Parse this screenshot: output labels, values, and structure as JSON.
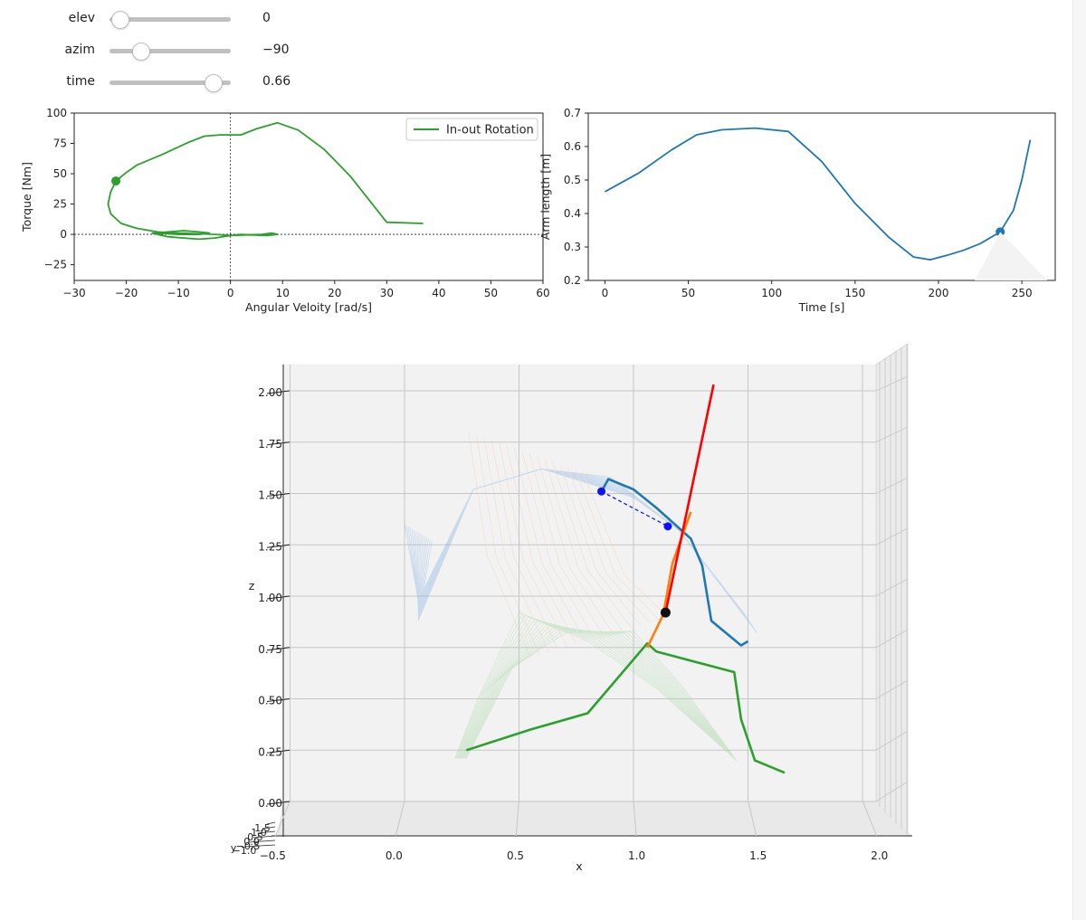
{
  "controls": {
    "sliders": [
      {
        "label": "elev",
        "value_text": "0",
        "fraction": 0.08
      },
      {
        "label": "azim",
        "value_text": "−90",
        "fraction": 0.25
      },
      {
        "label": "time",
        "value_text": "0.66",
        "fraction": 0.85
      }
    ]
  },
  "chart_data": [
    {
      "type": "line",
      "xlabel": "Angular Veloity [rad/s]",
      "ylabel": "Torque [Nm]",
      "xlim": [
        -30,
        60
      ],
      "ylim": [
        -38,
        100
      ],
      "xticks": [
        -30,
        -20,
        -10,
        0,
        10,
        20,
        30,
        40,
        50,
        60
      ],
      "yticks": [
        -25,
        0,
        25,
        50,
        75,
        100
      ],
      "xtick_labels": [
        "−30",
        "−20",
        "−10",
        "0",
        "10",
        "20",
        "30",
        "40",
        "50",
        "60"
      ],
      "ytick_labels": [
        "−25",
        "0",
        "25",
        "50",
        "75",
        "100"
      ],
      "reference_lines": {
        "x": 0,
        "y": 0,
        "style": "dotted"
      },
      "legend": {
        "position": "top-right",
        "entries": [
          "In-out Rotation"
        ]
      },
      "series": [
        {
          "name": "In-out Rotation",
          "color": "#2ca02c",
          "x": [
            -22,
            -20,
            -18,
            -13,
            -8,
            -5,
            -2,
            2,
            5,
            9,
            13,
            18,
            23,
            30,
            37
          ],
          "y": [
            44,
            51,
            57,
            66,
            76,
            81,
            82,
            82,
            87,
            92,
            86,
            70,
            48,
            10,
            9
          ],
          "loop": {
            "x": [
              -22,
              -23,
              -23.5,
              -23,
              -21,
              -18,
              -14,
              -10,
              -6,
              -3,
              0,
              3,
              6,
              8,
              9,
              7,
              4,
              2,
              0,
              -3,
              -6,
              -9,
              -12,
              -15,
              -12,
              -9,
              -6,
              -4,
              -6,
              -10,
              -14
            ],
            "y": [
              44,
              35,
              25,
              17,
              9,
              5,
              2,
              1,
              0.5,
              0,
              -1,
              -0.5,
              0,
              1,
              0,
              -1,
              -0.5,
              0,
              -1,
              -3,
              -4,
              -3,
              -2,
              1,
              2,
              3,
              2,
              1,
              0,
              0,
              1
            ]
          },
          "marker": {
            "x": -22,
            "y": 44
          }
        }
      ]
    },
    {
      "type": "line",
      "xlabel": "Time [s]",
      "ylabel": "Arm length [m]",
      "xlim": [
        -10,
        270
      ],
      "ylim": [
        0.2,
        0.7
      ],
      "xticks": [
        0,
        50,
        100,
        150,
        200,
        250
      ],
      "yticks": [
        0.2,
        0.3,
        0.4,
        0.5,
        0.6,
        0.7
      ],
      "xtick_labels": [
        "0",
        "50",
        "100",
        "150",
        "200",
        "250"
      ],
      "ytick_labels": [
        "0.2",
        "0.3",
        "0.4",
        "0.5",
        "0.6",
        "0.7"
      ],
      "series": [
        {
          "name": "",
          "color": "#1f77b4",
          "x": [
            0,
            20,
            40,
            55,
            70,
            90,
            110,
            130,
            150,
            170,
            185,
            195,
            205,
            215,
            225,
            237,
            245,
            250,
            255
          ],
          "y": [
            0.465,
            0.52,
            0.59,
            0.635,
            0.65,
            0.655,
            0.645,
            0.555,
            0.43,
            0.33,
            0.27,
            0.262,
            0.275,
            0.29,
            0.31,
            0.345,
            0.41,
            0.5,
            0.62
          ],
          "marker": {
            "x": 237,
            "y": 0.345
          }
        }
      ]
    },
    {
      "type": "3d-line",
      "xlabel": "x",
      "ylabel": "y",
      "zlabel": "z",
      "xlim": [
        -0.5,
        2.1
      ],
      "zlim": [
        -0.1,
        2.1
      ],
      "xticks": [
        -0.5,
        0.0,
        0.5,
        1.0,
        1.5,
        2.0
      ],
      "zticks": [
        0.0,
        0.25,
        0.5,
        0.75,
        1.0,
        1.25,
        1.5,
        1.75,
        2.0
      ],
      "xtick_labels": [
        "−0.5",
        "0.0",
        "0.5",
        "1.0",
        "1.5",
        "2.0"
      ],
      "ztick_labels": [
        "0.00",
        "0.25",
        "0.50",
        "0.75",
        "1.00",
        "1.25",
        "1.50",
        "1.75",
        "2.00"
      ],
      "ytick_labels": [
        "−1.0",
        "−0.5",
        "0.0",
        "0.5",
        "1.0",
        "1.5"
      ],
      "series": [
        {
          "name": "",
          "color": "#1f77b4",
          "x": [
            0.86,
            0.89,
            1.0,
            1.1,
            1.25,
            1.3,
            1.34,
            1.47,
            1.5
          ],
          "z": [
            1.51,
            1.57,
            1.52,
            1.43,
            1.28,
            1.15,
            0.88,
            0.76,
            0.78
          ]
        },
        {
          "name": "",
          "color": "#2ca02c",
          "x": [
            0.27,
            0.55,
            0.8,
            1.06,
            1.1,
            1.44,
            1.47,
            1.53,
            1.66
          ],
          "z": [
            0.25,
            0.35,
            0.43,
            0.77,
            0.73,
            0.63,
            0.4,
            0.2,
            0.14
          ]
        },
        {
          "name": "",
          "color": "#ff7f0e",
          "x": [
            1.06,
            1.13,
            1.17,
            1.25
          ],
          "z": [
            0.75,
            0.91,
            1.16,
            1.41
          ]
        },
        {
          "name": "",
          "color": "#ff0000",
          "x": [
            1.14,
            1.35
          ],
          "z": [
            0.92,
            2.03
          ]
        },
        {
          "name": "",
          "color": "#0000ff",
          "style": "dashed",
          "x": [
            0.86,
            1.15
          ],
          "z": [
            1.51,
            1.34
          ]
        }
      ],
      "markers": [
        {
          "x": 0.86,
          "z": 1.51,
          "color": "#1010ff"
        },
        {
          "x": 1.15,
          "z": 1.34,
          "color": "#1010ff"
        },
        {
          "x": 1.14,
          "z": 0.92,
          "color": "#111111"
        }
      ]
    }
  ]
}
